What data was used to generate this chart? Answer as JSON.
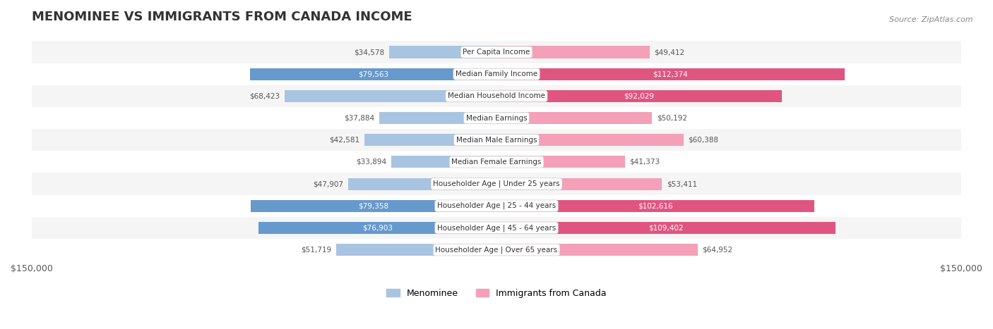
{
  "title": "MENOMINEE VS IMMIGRANTS FROM CANADA INCOME",
  "source": "Source: ZipAtlas.com",
  "categories": [
    "Per Capita Income",
    "Median Family Income",
    "Median Household Income",
    "Median Earnings",
    "Median Male Earnings",
    "Median Female Earnings",
    "Householder Age | Under 25 years",
    "Householder Age | 25 - 44 years",
    "Householder Age | 45 - 64 years",
    "Householder Age | Over 65 years"
  ],
  "menominee_values": [
    34578,
    79563,
    68423,
    37884,
    42581,
    33894,
    47907,
    79358,
    76903,
    51719
  ],
  "canada_values": [
    49412,
    112374,
    92029,
    50192,
    60388,
    41373,
    53411,
    102616,
    109402,
    64952
  ],
  "menominee_labels": [
    "$34,578",
    "$79,563",
    "$68,423",
    "$37,884",
    "$42,581",
    "$33,894",
    "$47,907",
    "$79,358",
    "$76,903",
    "$51,719"
  ],
  "canada_labels": [
    "$49,412",
    "$112,374",
    "$92,029",
    "$50,192",
    "$60,388",
    "$41,373",
    "$53,411",
    "$102,616",
    "$109,402",
    "$64,952"
  ],
  "max_val": 150000,
  "color_menominee_light": "#a8c4e0",
  "color_menominee_dark": "#6699cc",
  "color_canada_light": "#f4a0b8",
  "color_canada_dark": "#e05580",
  "background_row_light": "#f5f5f5",
  "background_row_white": "#ffffff",
  "label_color_dark": "#555555",
  "label_color_white": "#ffffff",
  "value_threshold_menominee": 70000,
  "value_threshold_canada": 80000
}
